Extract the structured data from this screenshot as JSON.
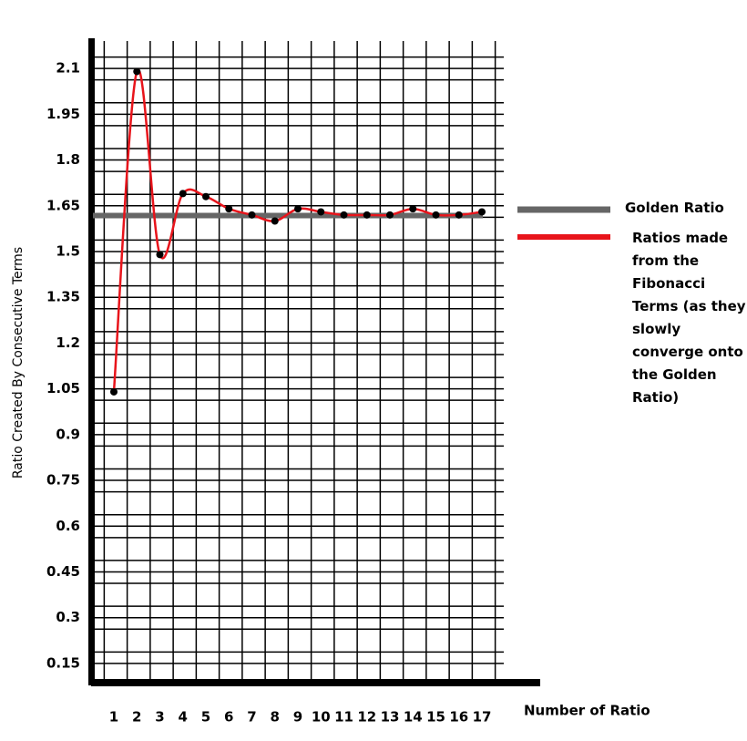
{
  "chart_data": {
    "type": "line",
    "y_label": "Ratio Created By Consecutive Terms",
    "x_label": "Number of Ratio",
    "x": [
      1,
      2,
      3,
      4,
      5,
      6,
      7,
      8,
      9,
      10,
      11,
      12,
      13,
      14,
      15,
      16,
      17
    ],
    "series": [
      {
        "name": "Ratios made from the Fibonacci Terms (as they slowly converge onto the Golden Ratio)",
        "color": "#e8141b",
        "values": [
          1.04,
          2.09,
          1.49,
          1.69,
          1.68,
          1.64,
          1.62,
          1.6,
          1.64,
          1.63,
          1.62,
          1.62,
          1.62,
          1.64,
          1.62,
          1.62,
          1.63
        ]
      }
    ],
    "reference_line": {
      "name": "Golden Ratio",
      "color": "#666666",
      "value": 1.618
    },
    "xlim": [
      0,
      18
    ],
    "ylim": [
      0.09,
      2.19
    ],
    "xticks": [
      1,
      2,
      3,
      4,
      5,
      6,
      7,
      8,
      9,
      10,
      11,
      12,
      13,
      14,
      15,
      16,
      17
    ],
    "yticks": [
      0.15,
      0.3,
      0.45,
      0.6,
      0.75,
      0.9,
      1.05,
      1.2,
      1.35,
      1.5,
      1.65,
      1.8,
      1.95,
      2.1
    ],
    "grid": true
  }
}
